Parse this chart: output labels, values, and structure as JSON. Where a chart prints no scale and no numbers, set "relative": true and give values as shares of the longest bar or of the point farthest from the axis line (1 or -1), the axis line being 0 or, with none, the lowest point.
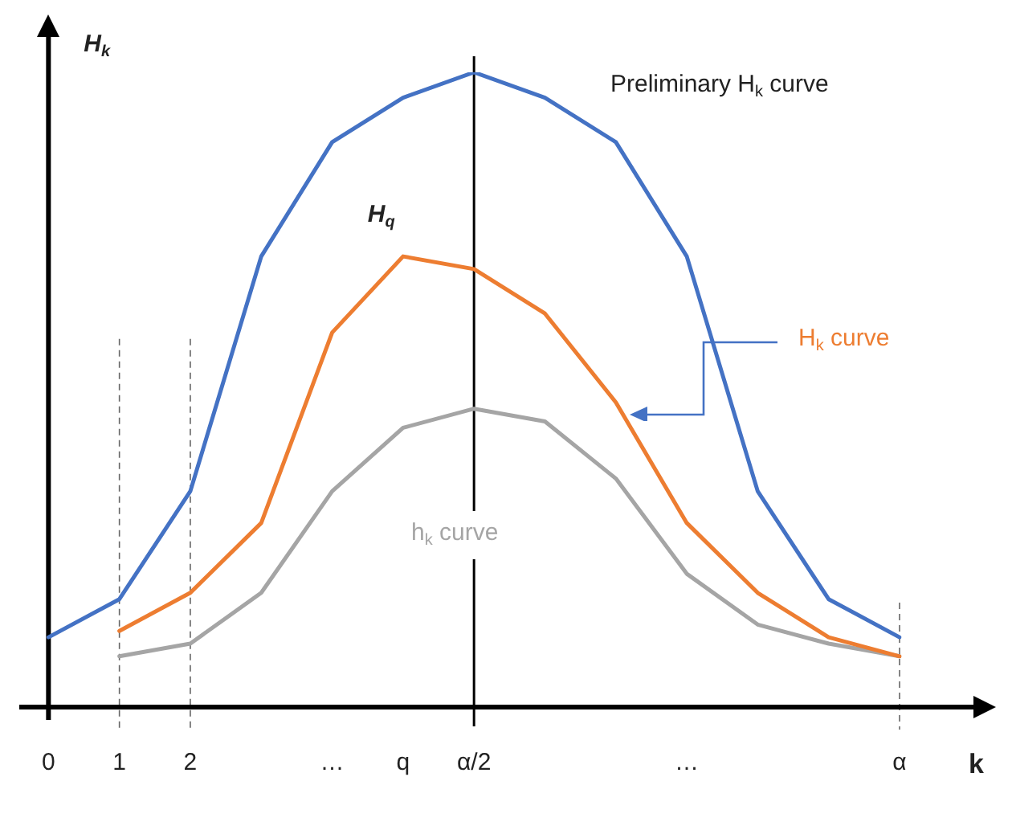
{
  "chart_data": {
    "type": "line",
    "relative": true,
    "xlabel": "k",
    "ylabel": "H$_{k}$",
    "categories": [
      "0",
      "1",
      "2",
      null,
      "…",
      "q",
      "α/2",
      null,
      null,
      "…",
      null,
      null,
      "α"
    ],
    "series": [
      {
        "name": "Preliminary H$_{k}$ curve",
        "color": "#4472c4",
        "values": [
          0.11,
          0.17,
          0.34,
          0.71,
          0.89,
          0.96,
          1,
          0.96,
          0.89,
          0.71,
          0.34,
          0.17,
          0.11
        ]
      },
      {
        "name": "H$_{k}$ curve",
        "color": "#ed7d31",
        "values": [
          null,
          0.12,
          0.18,
          0.29,
          0.59,
          0.71,
          0.69,
          0.62,
          0.48,
          0.29,
          0.18,
          0.11,
          0.08
        ]
      },
      {
        "name": "h$_{k}$ curve",
        "color": "#a5a5a5",
        "values": [
          null,
          0.08,
          0.1,
          0.18,
          0.34,
          0.44,
          0.47,
          0.45,
          0.36,
          0.21,
          0.13,
          0.1,
          0.08
        ]
      }
    ],
    "annotations": [
      {
        "text": "H$_{q}$",
        "x": "q",
        "y": 0.71
      }
    ],
    "ref_lines": [
      {
        "axis": "x",
        "value": "0",
        "line_style": "solid",
        "color": "#000000"
      },
      {
        "axis": "x",
        "value": "1",
        "line_style": "dashed"
      },
      {
        "axis": "x",
        "value": "2",
        "line_style": "dashed"
      },
      {
        "axis": "x",
        "value": "α/2",
        "line_style": "solid"
      },
      {
        "axis": "x",
        "value": "α",
        "line_style": "dashed"
      }
    ],
    "legend": false,
    "grid": false,
    "marker": "none",
    "line_style": "solid"
  }
}
